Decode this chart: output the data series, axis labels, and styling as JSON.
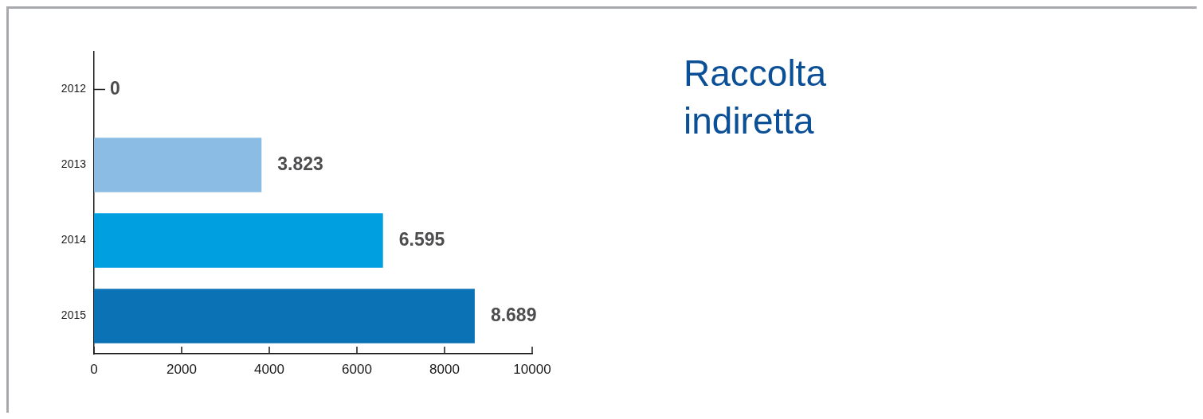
{
  "chart_data": {
    "type": "bar",
    "orientation": "horizontal",
    "title": "Raccolta indiretta",
    "categories": [
      "2012",
      "2013",
      "2014",
      "2015"
    ],
    "values": [
      0,
      3823,
      6595,
      8689
    ],
    "colors": [
      null,
      "#8bbce3",
      "#009fe0",
      "#0b72b5"
    ],
    "value_labels": [
      "0",
      "3.823",
      "6.595",
      "8.689"
    ],
    "xlim": [
      0,
      10000
    ],
    "xticks": [
      0,
      2000,
      4000,
      6000,
      8000,
      10000
    ]
  }
}
